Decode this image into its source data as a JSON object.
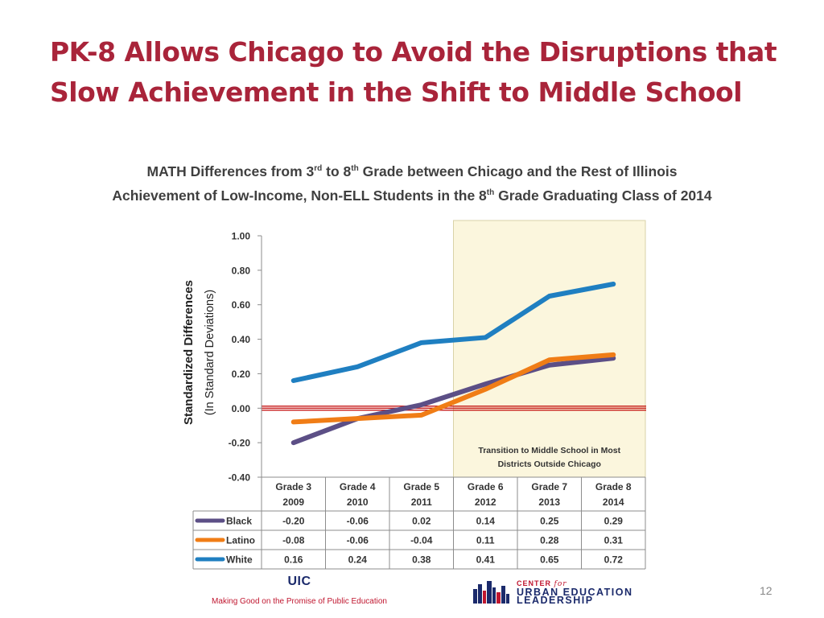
{
  "slide": {
    "title_line1": "PK-8 Allows Chicago to Avoid the Disruptions that",
    "title_line2": "Slow Achievement in the Shift to Middle School",
    "subtitle_line1": {
      "a": "MATH Differences from 3",
      "a_sup": "rd",
      "b": " to 8",
      "b_sup": "th",
      "c": " Grade between Chicago and the Rest of Illinois"
    },
    "subtitle_line2": {
      "a": "Achievement of Low-Income, Non-ELL Students in the 8",
      "a_sup": "th",
      "b": " Grade Graduating Class of 2014"
    },
    "footer": {
      "org": "UIC",
      "tagline": "Making Good on the Promise of Public Education",
      "logo_top": "CENTER",
      "logo_for": "for",
      "logo_line2": "URBAN EDUCATION",
      "logo_line3": "LEADERSHIP"
    },
    "page_number": "12"
  },
  "chart_data": {
    "type": "line",
    "ylabel": "Standardized Differences",
    "ylabel_sub": "(In Standard Deviations)",
    "ylim": [
      -0.4,
      1.0
    ],
    "yticks": [
      "1.00",
      "0.80",
      "0.60",
      "0.40",
      "0.20",
      "0.00",
      "-0.20",
      "-0.40"
    ],
    "ytick_values": [
      1.0,
      0.8,
      0.6,
      0.4,
      0.2,
      0.0,
      -0.2,
      -0.4
    ],
    "categories": [
      {
        "grade": "Grade 3",
        "year": "2009"
      },
      {
        "grade": "Grade 4",
        "year": "2010"
      },
      {
        "grade": "Grade 5",
        "year": "2011"
      },
      {
        "grade": "Grade 6",
        "year": "2012"
      },
      {
        "grade": "Grade 7",
        "year": "2013"
      },
      {
        "grade": "Grade 8",
        "year": "2014"
      }
    ],
    "series": [
      {
        "name": "Black",
        "color": "#5c4f86",
        "values": [
          -0.2,
          -0.06,
          0.02,
          0.14,
          0.25,
          0.29
        ],
        "labels": [
          "-0.20",
          "-0.06",
          "0.02",
          "0.14",
          "0.25",
          "0.29"
        ]
      },
      {
        "name": "Latino",
        "color": "#f07d16",
        "values": [
          -0.08,
          -0.06,
          -0.04,
          0.11,
          0.28,
          0.31
        ],
        "labels": [
          "-0.08",
          "-0.06",
          "-0.04",
          "0.11",
          "0.28",
          "0.31"
        ]
      },
      {
        "name": "White",
        "color": "#1f7fc1",
        "values": [
          0.16,
          0.24,
          0.38,
          0.41,
          0.65,
          0.72
        ],
        "labels": [
          "0.16",
          "0.24",
          "0.38",
          "0.41",
          "0.65",
          "0.72"
        ]
      }
    ],
    "reference_line": {
      "value": 0.0,
      "color": "#c00000"
    },
    "shaded_region": {
      "from_category": 3,
      "to_category": 5,
      "color": "#fbf6dd",
      "label_line1": "Transition to Middle School in Most",
      "label_line2": "Districts Outside  Chicago"
    },
    "grid": false,
    "legend": "table-below"
  }
}
